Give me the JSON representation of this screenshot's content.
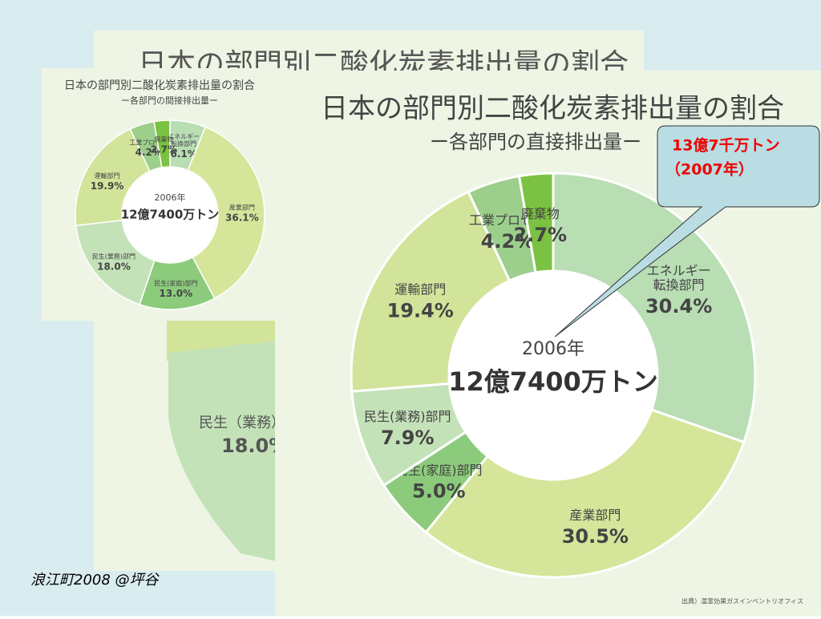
{
  "slide": {
    "footer": "浪江町2008 @坪谷",
    "callout": [
      "13億7千万トン",
      "（2007年）"
    ],
    "source": "出典）温室効果ガスインベントリオフィス",
    "background_chart": {
      "title": "日本の部門別二酸化炭素排出量の割合",
      "label": "民生（業務）部",
      "value_label": "18.0%"
    }
  },
  "chart_data": [
    {
      "type": "donut",
      "title": "日本の部門別二酸化炭素排出量の割合",
      "subtitle": "ー各部門の直接排出量ー",
      "center_year": "2006年",
      "center_total": "12億7400万トン",
      "categories": [
        "エネルギー\n転換部門",
        "産業部門",
        "民生(家庭)部門",
        "民生(業務)部門",
        "運輸部門",
        "工業プロセス",
        "廃棄物"
      ],
      "values": [
        30.4,
        30.5,
        5.0,
        7.9,
        19.4,
        4.2,
        2.7
      ],
      "value_labels": [
        "30.4%",
        "30.5%",
        "5.0%",
        "7.9%",
        "19.4%",
        "4.2%",
        "2.7%"
      ],
      "colors": [
        "#b9deb4",
        "#d5e59a",
        "#8ccb7c",
        "#c4e2b8",
        "#d2e49a",
        "#9ccf8c",
        "#7cc242"
      ]
    },
    {
      "type": "donut",
      "title": "日本の部門別二酸化炭素排出量の割合",
      "subtitle": "ー各部門の間接排出量ー",
      "center_year": "2006年",
      "center_total": "12億7400万トン",
      "categories": [
        "エネルギー\n転換部門",
        "産業部門",
        "民生(家庭)部門",
        "民生(業務)部門",
        "運輸部門",
        "工業プロセス",
        "廃棄物"
      ],
      "values": [
        6.1,
        36.1,
        13.0,
        18.0,
        19.9,
        4.2,
        2.7
      ],
      "value_labels": [
        "6.1%",
        "36.1%",
        "13.0%",
        "18.0%",
        "19.9%",
        "4.2%",
        "2.7%"
      ],
      "colors": [
        "#b9deb4",
        "#d5e59a",
        "#8ccb7c",
        "#c4e2b8",
        "#d2e49a",
        "#9ccf8c",
        "#7cc242"
      ]
    }
  ]
}
